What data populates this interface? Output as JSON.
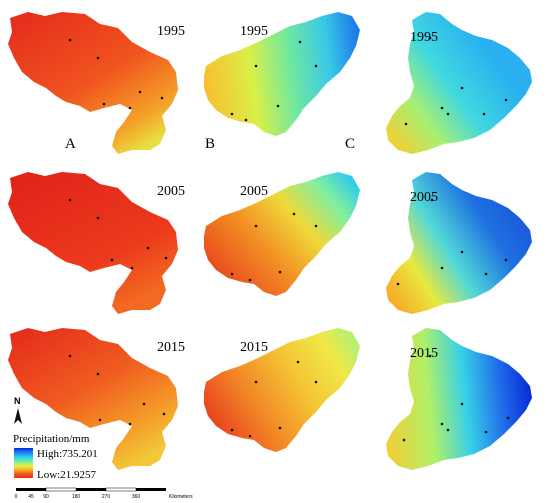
{
  "figure": {
    "column_labels": [
      "A",
      "B",
      "C"
    ],
    "row_years": [
      "1995",
      "2005",
      "2015"
    ],
    "legend": {
      "title": "Precipitation/mm",
      "high_label": "High:735.201",
      "low_label": "Low:21.9257",
      "colors": [
        "#0a2ad8",
        "#1e7ff0",
        "#28d0f0",
        "#70f0a0",
        "#e8f040",
        "#f8a020",
        "#f05020",
        "#e82a1e"
      ]
    },
    "north_arrow": {
      "label": "N"
    },
    "scale_bar": {
      "ticks": [
        "0",
        "45",
        "90",
        "180",
        "270",
        "360"
      ],
      "unit": "Kilometers"
    }
  }
}
